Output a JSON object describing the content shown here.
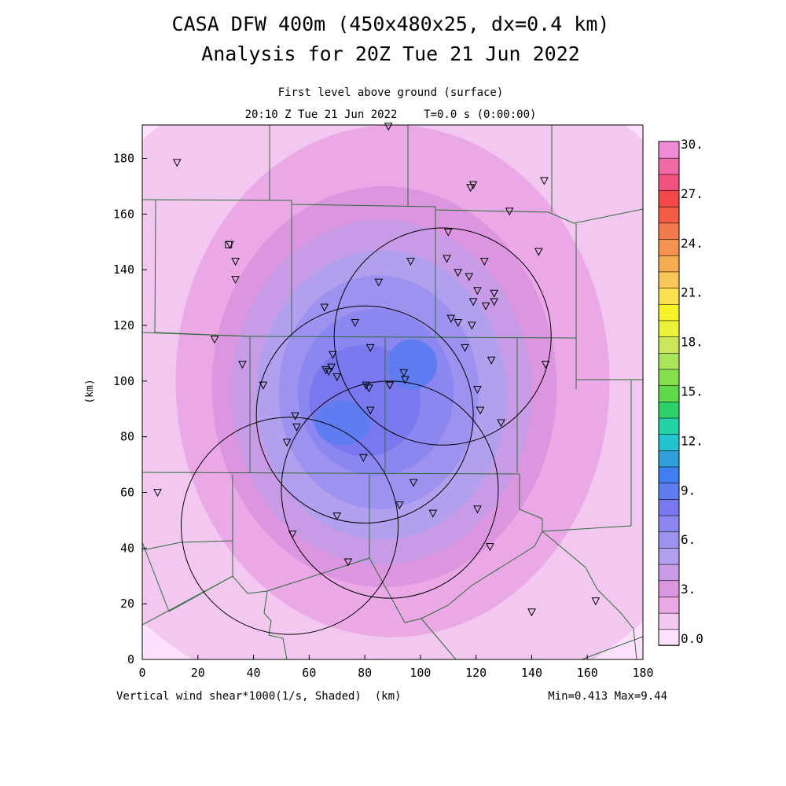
{
  "header": {
    "title_line1": "CASA DFW 400m (450x480x25, dx=0.4 km)",
    "title_line2": "Analysis for 20Z Tue 21 Jun 2022",
    "subtitle_line1": "First level above ground (surface)",
    "subtitle_line2": "20:10 Z Tue 21 Jun 2022    T=0.0 s (0:00:00)"
  },
  "footer": {
    "variable_label": "Vertical wind shear*1000(1/s, Shaded)  (km)",
    "minmax_label": "Min=0.413 Max=9.44"
  },
  "colors": {
    "county_lines": "#2f6b3a",
    "radar_rings": "#000000",
    "palette": [
      "#fde0fb",
      "#f3c8f0",
      "#eaa8e6",
      "#dc96e0",
      "#c79be6",
      "#b2a0ee",
      "#9e92f0",
      "#8c86f1",
      "#7a78ee",
      "#5f7cf0",
      "#3f7ff2",
      "#2f9ed9",
      "#22c4cf",
      "#22d3a6",
      "#2fd26a",
      "#5fd84a",
      "#86e04e",
      "#a9e45a",
      "#cbe85a",
      "#eaf33a",
      "#f8f22a",
      "#fbe04f",
      "#f9c65a",
      "#f6ad52",
      "#f49250",
      "#f37a4f",
      "#f55b45",
      "#f54848",
      "#f2507e",
      "#f06aa6",
      "#f08ad7"
    ]
  },
  "chart_data": {
    "type": "heatmap",
    "title": "CASA DFW 400m (450x480x25, dx=0.4 km)",
    "subtitle": "Analysis for 20Z Tue 21 Jun 2022",
    "xlabel": "(km)",
    "ylabel": "(km)",
    "xlim": [
      0,
      180
    ],
    "ylim": [
      0,
      192
    ],
    "xticks": [
      "0",
      "20",
      "40",
      "60",
      "80",
      "100",
      "120",
      "140",
      "160",
      "180"
    ],
    "yticks": [
      "0",
      "20",
      "40",
      "60",
      "80",
      "100",
      "120",
      "140",
      "160",
      "180"
    ],
    "colorbar_ticks": [
      "0.0",
      "3.",
      "6.",
      "9.",
      "12.",
      "15.",
      "18.",
      "21.",
      "24.",
      "27.",
      "30."
    ],
    "colorbar_range": [
      0,
      30
    ],
    "colorbar_steps": 31,
    "value_min": 0.413,
    "value_max": 9.44,
    "field_levels": [
      {
        "value": 1.0,
        "cx": 90,
        "cy": 100,
        "rx": 130,
        "ry": 120
      },
      {
        "value": 2.0,
        "cx": 90,
        "cy": 100,
        "rx": 78,
        "ry": 92
      },
      {
        "value": 3.0,
        "cx": 87,
        "cy": 98,
        "rx": 62,
        "ry": 72
      },
      {
        "value": 4.0,
        "cx": 86,
        "cy": 96,
        "rx": 54,
        "ry": 62
      },
      {
        "value": 5.0,
        "cx": 86,
        "cy": 95,
        "rx": 45,
        "ry": 52
      },
      {
        "value": 6.0,
        "cx": 85,
        "cy": 96,
        "rx": 36,
        "ry": 42
      },
      {
        "value": 7.0,
        "cx": 84,
        "cy": 96,
        "rx": 28,
        "ry": 30
      },
      {
        "value": 8.0,
        "cx": 80,
        "cy": 93,
        "rx": 20,
        "ry": 20
      },
      {
        "value": 9.0,
        "cx": 72,
        "cy": 85,
        "rx": 10,
        "ry": 8
      },
      {
        "value": 9.0,
        "cx": 97,
        "cy": 106,
        "rx": 9,
        "ry": 9
      }
    ],
    "radar_rings": [
      {
        "cx": 108,
        "cy": 116,
        "r": 39
      },
      {
        "cx": 80,
        "cy": 88,
        "r": 39
      },
      {
        "cx": 89,
        "cy": 61,
        "r": 39
      },
      {
        "cx": 53,
        "cy": 48,
        "r": 39
      }
    ],
    "stations": [
      [
        12.5,
        178.5
      ],
      [
        31.5,
        149
      ],
      [
        33.5,
        143
      ],
      [
        33.5,
        136.5
      ],
      [
        26,
        115
      ],
      [
        36,
        106
      ],
      [
        43.5,
        98.5
      ],
      [
        55,
        87.5
      ],
      [
        55.5,
        83.5
      ],
      [
        52,
        78
      ],
      [
        54,
        45
      ],
      [
        70,
        51.5
      ],
      [
        74,
        35
      ],
      [
        66,
        104
      ],
      [
        67,
        103.5
      ],
      [
        68,
        105
      ],
      [
        68.5,
        109.5
      ],
      [
        70,
        101.5
      ],
      [
        76.5,
        121
      ],
      [
        82,
        112
      ],
      [
        80.5,
        98.5
      ],
      [
        81.5,
        97.5
      ],
      [
        82,
        89.5
      ],
      [
        79.5,
        72.5
      ],
      [
        89,
        98.5
      ],
      [
        94,
        103
      ],
      [
        94.5,
        100.5
      ],
      [
        97.5,
        63.5
      ],
      [
        92.5,
        55.5
      ],
      [
        104.5,
        52.5
      ],
      [
        120.5,
        54
      ],
      [
        125,
        40.5
      ],
      [
        120.5,
        97
      ],
      [
        121.5,
        89.5
      ],
      [
        129,
        85
      ],
      [
        125.5,
        107.5
      ],
      [
        145,
        106
      ],
      [
        116,
        112
      ],
      [
        111,
        122.5
      ],
      [
        113.5,
        121
      ],
      [
        118.5,
        120
      ],
      [
        85,
        135.5
      ],
      [
        96.5,
        143
      ],
      [
        110,
        153.5
      ],
      [
        109.5,
        144
      ],
      [
        113.5,
        139
      ],
      [
        117.5,
        137.5
      ],
      [
        120.5,
        132.5
      ],
      [
        126.5,
        131.5
      ],
      [
        126.5,
        128.5
      ],
      [
        123.5,
        127
      ],
      [
        119,
        128.5
      ],
      [
        123,
        143
      ],
      [
        132,
        161
      ],
      [
        142.5,
        146.5
      ],
      [
        144.5,
        172
      ],
      [
        118,
        169.5
      ],
      [
        119,
        170.5
      ],
      [
        88.5,
        191.5
      ],
      [
        5.5,
        60
      ],
      [
        140,
        17
      ],
      [
        163,
        21
      ],
      [
        65.5,
        126.5
      ]
    ],
    "square_marker": [
      31,
      149
    ]
  }
}
